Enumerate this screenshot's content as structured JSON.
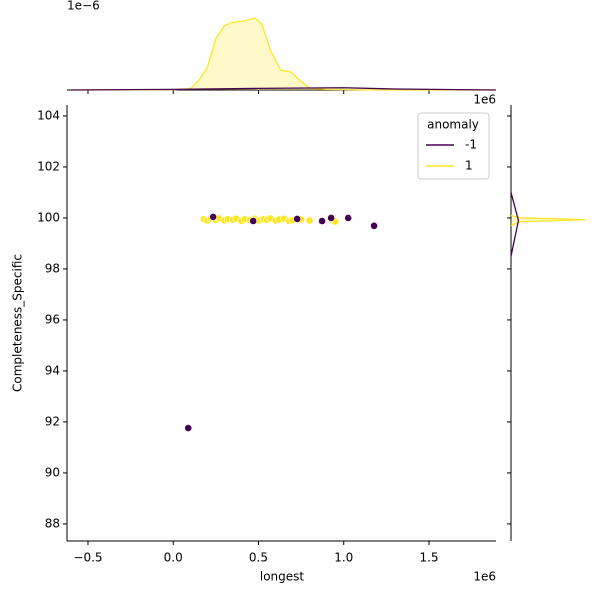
{
  "chart_data": [
    {
      "type": "scatter",
      "x_label": "longest",
      "y_label": "Completeness_Specific",
      "x_offset": "1e6",
      "xlim": [
        -0.623,
        1.893
      ],
      "xticks": [
        {
          "value": -0.5,
          "label": "−0.5"
        },
        {
          "value": 0,
          "label": "0.0"
        },
        0.5,
        {
          "value": 1,
          "label": "1.0"
        },
        1.5
      ],
      "ylim": [
        87.33,
        104.43
      ],
      "yticks": [
        88,
        90,
        92,
        94,
        96,
        98,
        100,
        102,
        104
      ],
      "legend": {
        "title": "anomaly",
        "position": "upper right"
      },
      "series": [
        {
          "name": "-1",
          "color": "#440154",
          "x": [
            0.088,
            0.234,
            0.469,
            0.727,
            0.873,
            0.926,
            1.026,
            1.178
          ],
          "y": [
            91.76,
            100.04,
            99.88,
            99.96,
            99.88,
            100.0,
            100.0,
            99.69
          ]
        },
        {
          "name": "1",
          "color": "#fde725",
          "x": [
            0.18,
            0.2,
            0.22,
            0.25,
            0.27,
            0.3,
            0.32,
            0.35,
            0.37,
            0.4,
            0.42,
            0.45,
            0.48,
            0.5,
            0.53,
            0.55,
            0.57,
            0.6,
            0.62,
            0.65,
            0.68,
            0.7,
            0.75,
            0.8,
            0.93,
            0.95
          ],
          "y": [
            99.95,
            99.9,
            99.97,
            99.92,
            99.98,
            99.9,
            99.95,
            99.93,
            99.97,
            99.88,
            99.95,
            99.92,
            99.97,
            99.9,
            99.95,
            99.93,
            99.98,
            99.9,
            99.94,
            99.97,
            99.88,
            99.92,
            99.95,
            99.9,
            99.93,
            99.86
          ]
        }
      ]
    },
    {
      "type": "kde",
      "y_offset": "1e−6",
      "ylim": [
        0,
        2.55
      ],
      "series": [
        {
          "name": "1",
          "color": "#fde725",
          "fill": true,
          "x": [
            -0.6,
            0.0,
            0.1,
            0.15,
            0.2,
            0.25,
            0.3,
            0.35,
            0.42,
            0.48,
            0.52,
            0.57,
            0.63,
            0.69,
            0.74,
            0.8,
            0.9,
            1.2,
            1.89
          ],
          "values": [
            0,
            0.01,
            0.04,
            0.3,
            0.7,
            1.6,
            2.0,
            2.11,
            2.15,
            2.24,
            2.05,
            1.24,
            0.62,
            0.56,
            0.31,
            0.06,
            0.02,
            0,
            0
          ]
        },
        {
          "name": "-1",
          "color": "#440154",
          "fill": false,
          "x": [
            -0.6,
            0.0,
            0.5,
            1.0,
            1.3,
            1.89
          ],
          "values": [
            0,
            0.02,
            0.05,
            0.07,
            0.03,
            0
          ]
        }
      ]
    },
    {
      "type": "kde-horizontal",
      "xlim": [
        0,
        0.9
      ],
      "series": [
        {
          "name": "1",
          "color": "#fde725",
          "fill": true,
          "y": [
            99.7,
            99.85,
            99.9,
            99.93,
            99.96,
            100.0,
            100.1
          ],
          "values": [
            0,
            0.1,
            0.5,
            0.8,
            0.6,
            0.1,
            0
          ]
        },
        {
          "name": "-1",
          "color": "#440154",
          "fill": false,
          "y": [
            98.5,
            99.9,
            101
          ],
          "values": [
            0,
            0.08,
            0
          ]
        }
      ]
    }
  ]
}
